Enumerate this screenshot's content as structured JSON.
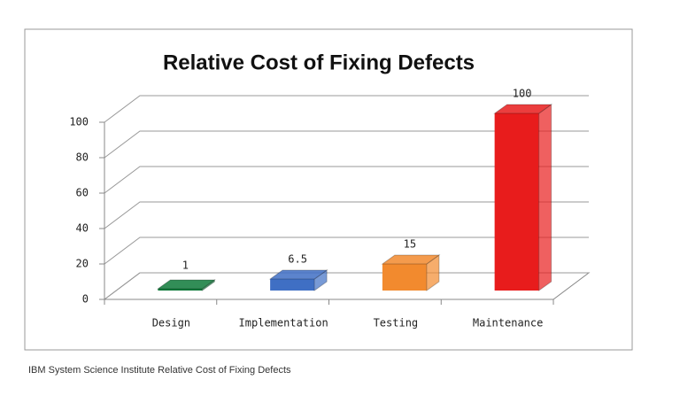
{
  "chart_data": {
    "type": "bar3d",
    "title": "Relative Cost of Fixing Defects",
    "categories": [
      "Design",
      "Implementation",
      "Testing",
      "Maintenance"
    ],
    "values": [
      1,
      6.5,
      15,
      100
    ],
    "colors": [
      "#0e7a3a",
      "#3f6fc4",
      "#f28a2e",
      "#e81c1c"
    ],
    "ylim": [
      0,
      100
    ],
    "yticks": [
      0,
      20,
      40,
      60,
      80,
      100
    ],
    "grid": true
  },
  "caption": "IBM System Science Institute Relative Cost of Fixing Defects"
}
